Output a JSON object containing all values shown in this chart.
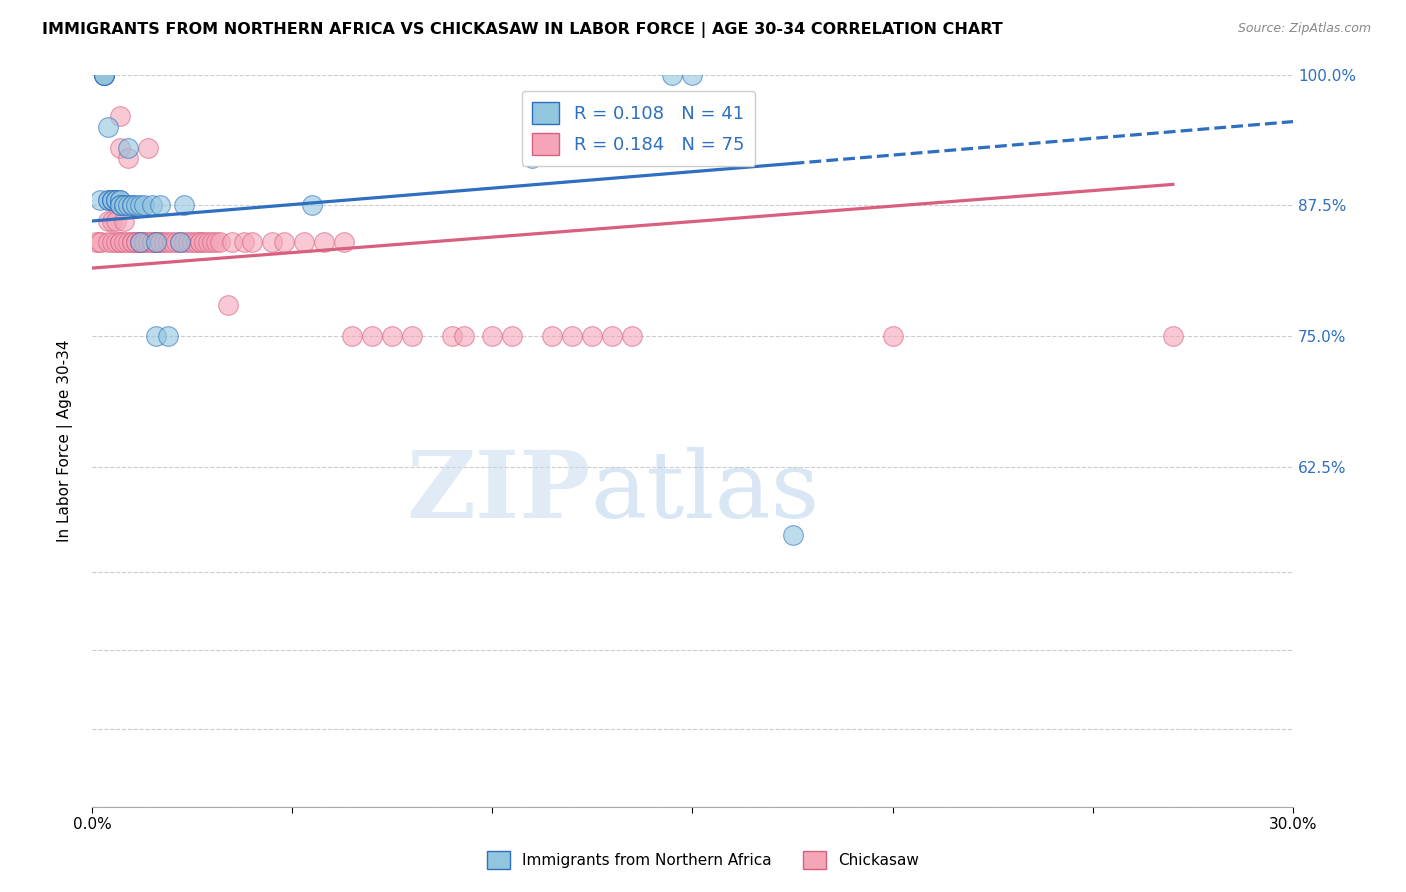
{
  "title": "IMMIGRANTS FROM NORTHERN AFRICA VS CHICKASAW IN LABOR FORCE | AGE 30-34 CORRELATION CHART",
  "source": "Source: ZipAtlas.com",
  "ylabel": "In Labor Force | Age 30-34",
  "xlim": [
    0.0,
    0.3
  ],
  "ylim": [
    0.3,
    1.0
  ],
  "legend_R1": "R = 0.108",
  "legend_N1": "N = 41",
  "legend_R2": "R = 0.184",
  "legend_N2": "N = 75",
  "color_blue": "#92C5DE",
  "color_pink": "#F4A6B8",
  "line_color_blue": "#2E6FBF",
  "line_color_pink": "#D95F7F",
  "legend_text_color": "#2E6FBF",
  "watermark_zip": "ZIP",
  "watermark_atlas": "atlas",
  "blue_x": [
    0.002,
    0.003,
    0.003,
    0.003,
    0.003,
    0.004,
    0.004,
    0.004,
    0.005,
    0.005,
    0.005,
    0.005,
    0.006,
    0.006,
    0.006,
    0.007,
    0.007,
    0.007,
    0.007,
    0.008,
    0.008,
    0.009,
    0.009,
    0.01,
    0.01,
    0.011,
    0.012,
    0.012,
    0.013,
    0.015,
    0.016,
    0.016,
    0.017,
    0.019,
    0.022,
    0.023,
    0.055,
    0.11,
    0.145,
    0.15,
    0.175
  ],
  "blue_y": [
    0.88,
    1.0,
    1.0,
    1.0,
    1.0,
    0.88,
    0.88,
    0.95,
    0.88,
    0.88,
    0.88,
    0.88,
    0.88,
    0.88,
    0.88,
    0.88,
    0.88,
    0.875,
    0.875,
    0.875,
    0.875,
    0.875,
    0.93,
    0.875,
    0.875,
    0.875,
    0.84,
    0.875,
    0.875,
    0.875,
    0.84,
    0.75,
    0.875,
    0.75,
    0.84,
    0.875,
    0.875,
    0.92,
    1.0,
    1.0,
    0.56
  ],
  "pink_x": [
    0.001,
    0.002,
    0.002,
    0.003,
    0.003,
    0.004,
    0.004,
    0.005,
    0.005,
    0.006,
    0.006,
    0.007,
    0.007,
    0.007,
    0.007,
    0.008,
    0.008,
    0.009,
    0.009,
    0.01,
    0.01,
    0.011,
    0.011,
    0.012,
    0.012,
    0.013,
    0.013,
    0.014,
    0.014,
    0.015,
    0.015,
    0.016,
    0.016,
    0.017,
    0.017,
    0.018,
    0.019,
    0.02,
    0.021,
    0.022,
    0.023,
    0.024,
    0.025,
    0.026,
    0.027,
    0.027,
    0.028,
    0.029,
    0.03,
    0.031,
    0.032,
    0.034,
    0.035,
    0.038,
    0.04,
    0.045,
    0.048,
    0.053,
    0.058,
    0.063,
    0.065,
    0.07,
    0.075,
    0.08,
    0.09,
    0.093,
    0.1,
    0.105,
    0.115,
    0.12,
    0.125,
    0.13,
    0.135,
    0.2,
    0.27
  ],
  "pink_y": [
    0.84,
    0.84,
    0.84,
    1.0,
    1.0,
    0.86,
    0.84,
    0.86,
    0.84,
    0.86,
    0.84,
    0.84,
    0.96,
    0.93,
    0.84,
    0.84,
    0.86,
    0.84,
    0.92,
    0.84,
    0.84,
    0.84,
    0.84,
    0.84,
    0.84,
    0.84,
    0.84,
    0.84,
    0.93,
    0.84,
    0.84,
    0.84,
    0.84,
    0.84,
    0.84,
    0.84,
    0.84,
    0.84,
    0.84,
    0.84,
    0.84,
    0.84,
    0.84,
    0.84,
    0.84,
    0.84,
    0.84,
    0.84,
    0.84,
    0.84,
    0.84,
    0.78,
    0.84,
    0.84,
    0.84,
    0.84,
    0.84,
    0.84,
    0.84,
    0.84,
    0.75,
    0.75,
    0.75,
    0.75,
    0.75,
    0.75,
    0.75,
    0.75,
    0.75,
    0.75,
    0.75,
    0.75,
    0.75,
    0.75,
    0.75
  ],
  "blue_trend_x0": 0.0,
  "blue_trend_y0": 0.86,
  "blue_trend_x1": 0.175,
  "blue_trend_y1": 0.915,
  "blue_trend_xend": 0.3,
  "blue_trend_yend": 0.955,
  "pink_trend_x0": 0.0,
  "pink_trend_y0": 0.815,
  "pink_trend_x1": 0.27,
  "pink_trend_y1": 0.895
}
